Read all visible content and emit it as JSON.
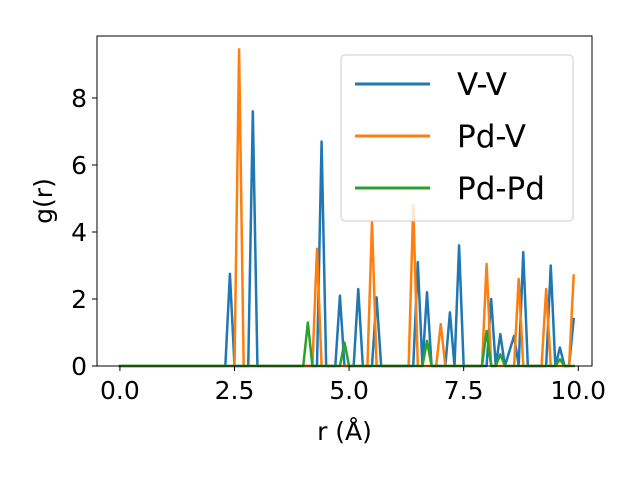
{
  "chart_data": {
    "type": "line",
    "xlabel": "r (Å)",
    "ylabel": "g(r)",
    "xlim": [
      -0.5,
      10.3
    ],
    "ylim": [
      0,
      9.85
    ],
    "xticks": [
      0.0,
      2.5,
      5.0,
      7.5,
      10.0
    ],
    "xtick_labels": [
      "0.0",
      "2.5",
      "5.0",
      "7.5",
      "10.0"
    ],
    "yticks": [
      0,
      2,
      4,
      6,
      8
    ],
    "ytick_labels": [
      "0",
      "2",
      "4",
      "6",
      "8"
    ],
    "grid": false,
    "legend_position": "upper right",
    "series": [
      {
        "name": "V-V",
        "color": "#1f77b4",
        "points": [
          [
            0.0,
            0
          ],
          [
            2.3,
            0
          ],
          [
            2.4,
            2.75
          ],
          [
            2.5,
            0
          ],
          [
            2.8,
            0
          ],
          [
            2.9,
            7.6
          ],
          [
            3.0,
            0
          ],
          [
            4.3,
            0
          ],
          [
            4.4,
            6.7
          ],
          [
            4.5,
            0
          ],
          [
            4.7,
            0
          ],
          [
            4.8,
            2.1
          ],
          [
            4.9,
            0
          ],
          [
            5.1,
            0
          ],
          [
            5.2,
            2.3
          ],
          [
            5.3,
            0
          ],
          [
            5.5,
            0
          ],
          [
            5.6,
            2.05
          ],
          [
            5.7,
            0
          ],
          [
            6.4,
            0
          ],
          [
            6.5,
            3.1
          ],
          [
            6.6,
            0
          ],
          [
            6.7,
            2.2
          ],
          [
            6.8,
            0
          ],
          [
            7.1,
            0
          ],
          [
            7.2,
            1.6
          ],
          [
            7.3,
            0
          ],
          [
            7.4,
            3.6
          ],
          [
            7.5,
            0
          ],
          [
            8.0,
            0
          ],
          [
            8.1,
            2.0
          ],
          [
            8.2,
            0
          ],
          [
            8.3,
            0.95
          ],
          [
            8.4,
            0
          ],
          [
            8.6,
            0.9
          ],
          [
            8.7,
            0
          ],
          [
            8.8,
            3.4
          ],
          [
            8.9,
            0
          ],
          [
            9.3,
            0
          ],
          [
            9.4,
            3.0
          ],
          [
            9.5,
            0
          ],
          [
            9.6,
            0.55
          ],
          [
            9.7,
            0
          ],
          [
            9.8,
            0
          ],
          [
            9.9,
            1.4
          ]
        ]
      },
      {
        "name": "Pd-V",
        "color": "#ff7f0e",
        "points": [
          [
            0.0,
            0
          ],
          [
            2.5,
            0
          ],
          [
            2.6,
            9.45
          ],
          [
            2.7,
            0
          ],
          [
            4.2,
            0
          ],
          [
            4.3,
            3.5
          ],
          [
            4.4,
            0
          ],
          [
            5.4,
            0
          ],
          [
            5.5,
            4.3
          ],
          [
            5.6,
            0
          ],
          [
            6.3,
            0
          ],
          [
            6.4,
            4.8
          ],
          [
            6.5,
            0
          ],
          [
            6.9,
            0
          ],
          [
            7.0,
            1.25
          ],
          [
            7.1,
            0
          ],
          [
            7.9,
            0
          ],
          [
            8.0,
            3.05
          ],
          [
            8.1,
            0
          ],
          [
            8.6,
            0
          ],
          [
            8.7,
            2.6
          ],
          [
            8.8,
            0
          ],
          [
            9.2,
            0
          ],
          [
            9.3,
            2.3
          ],
          [
            9.4,
            0
          ],
          [
            9.8,
            0
          ],
          [
            9.9,
            2.7
          ]
        ]
      },
      {
        "name": "Pd-Pd",
        "color": "#2ca02c",
        "points": [
          [
            0.0,
            0
          ],
          [
            4.0,
            0
          ],
          [
            4.1,
            1.3
          ],
          [
            4.2,
            0
          ],
          [
            4.8,
            0
          ],
          [
            4.9,
            0.7
          ],
          [
            5.0,
            0
          ],
          [
            6.6,
            0
          ],
          [
            6.7,
            0.75
          ],
          [
            6.8,
            0
          ],
          [
            7.9,
            0
          ],
          [
            8.0,
            1.05
          ],
          [
            8.1,
            0
          ],
          [
            8.2,
            0
          ],
          [
            8.3,
            0.35
          ],
          [
            8.4,
            0
          ],
          [
            9.5,
            0
          ],
          [
            9.6,
            0.2
          ],
          [
            9.7,
            0
          ],
          [
            9.9,
            0
          ]
        ]
      }
    ]
  }
}
